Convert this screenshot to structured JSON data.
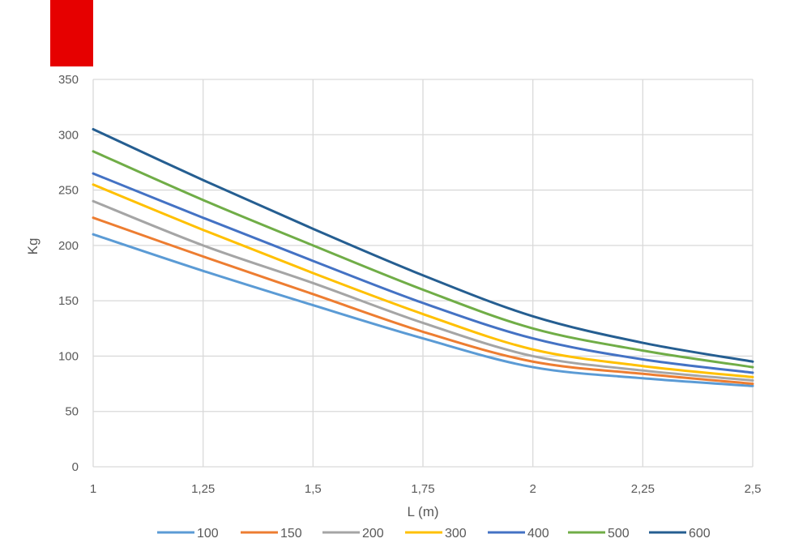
{
  "chart_data": {
    "type": "line",
    "title": "",
    "xlabel": "L (m)",
    "ylabel": "Kg",
    "xlim": [
      1,
      2.5
    ],
    "ylim": [
      0,
      350
    ],
    "x": [
      1,
      1.25,
      1.5,
      1.75,
      2,
      2.25,
      2.5
    ],
    "x_tick_labels": [
      "1",
      "1,25",
      "1,5",
      "1,75",
      "2",
      "2,25",
      "2,5"
    ],
    "y_ticks": [
      0,
      50,
      100,
      150,
      200,
      250,
      300,
      350
    ],
    "y_tick_labels": [
      "0",
      "50",
      "100",
      "150",
      "200",
      "250",
      "300",
      "350"
    ],
    "grid": true,
    "legend_position": "bottom",
    "series": [
      {
        "name": "100",
        "color": "#5b9bd5",
        "values": [
          210,
          177,
          146,
          116,
          90,
          80,
          73
        ]
      },
      {
        "name": "150",
        "color": "#ed7d31",
        "values": [
          225,
          190,
          156,
          122,
          95,
          84,
          75
        ]
      },
      {
        "name": "200",
        "color": "#a5a5a5",
        "values": [
          240,
          200,
          166,
          130,
          100,
          87,
          78
        ]
      },
      {
        "name": "300",
        "color": "#ffc000",
        "values": [
          255,
          214,
          175,
          138,
          106,
          91,
          81
        ]
      },
      {
        "name": "400",
        "color": "#4472c4",
        "values": [
          265,
          225,
          186,
          148,
          116,
          97,
          85
        ]
      },
      {
        "name": "500",
        "color": "#70ad47",
        "values": [
          285,
          241,
          200,
          160,
          125,
          105,
          90
        ]
      },
      {
        "name": "600",
        "color": "#255e91",
        "values": [
          305,
          259,
          215,
          173,
          136,
          112,
          95
        ]
      }
    ]
  }
}
